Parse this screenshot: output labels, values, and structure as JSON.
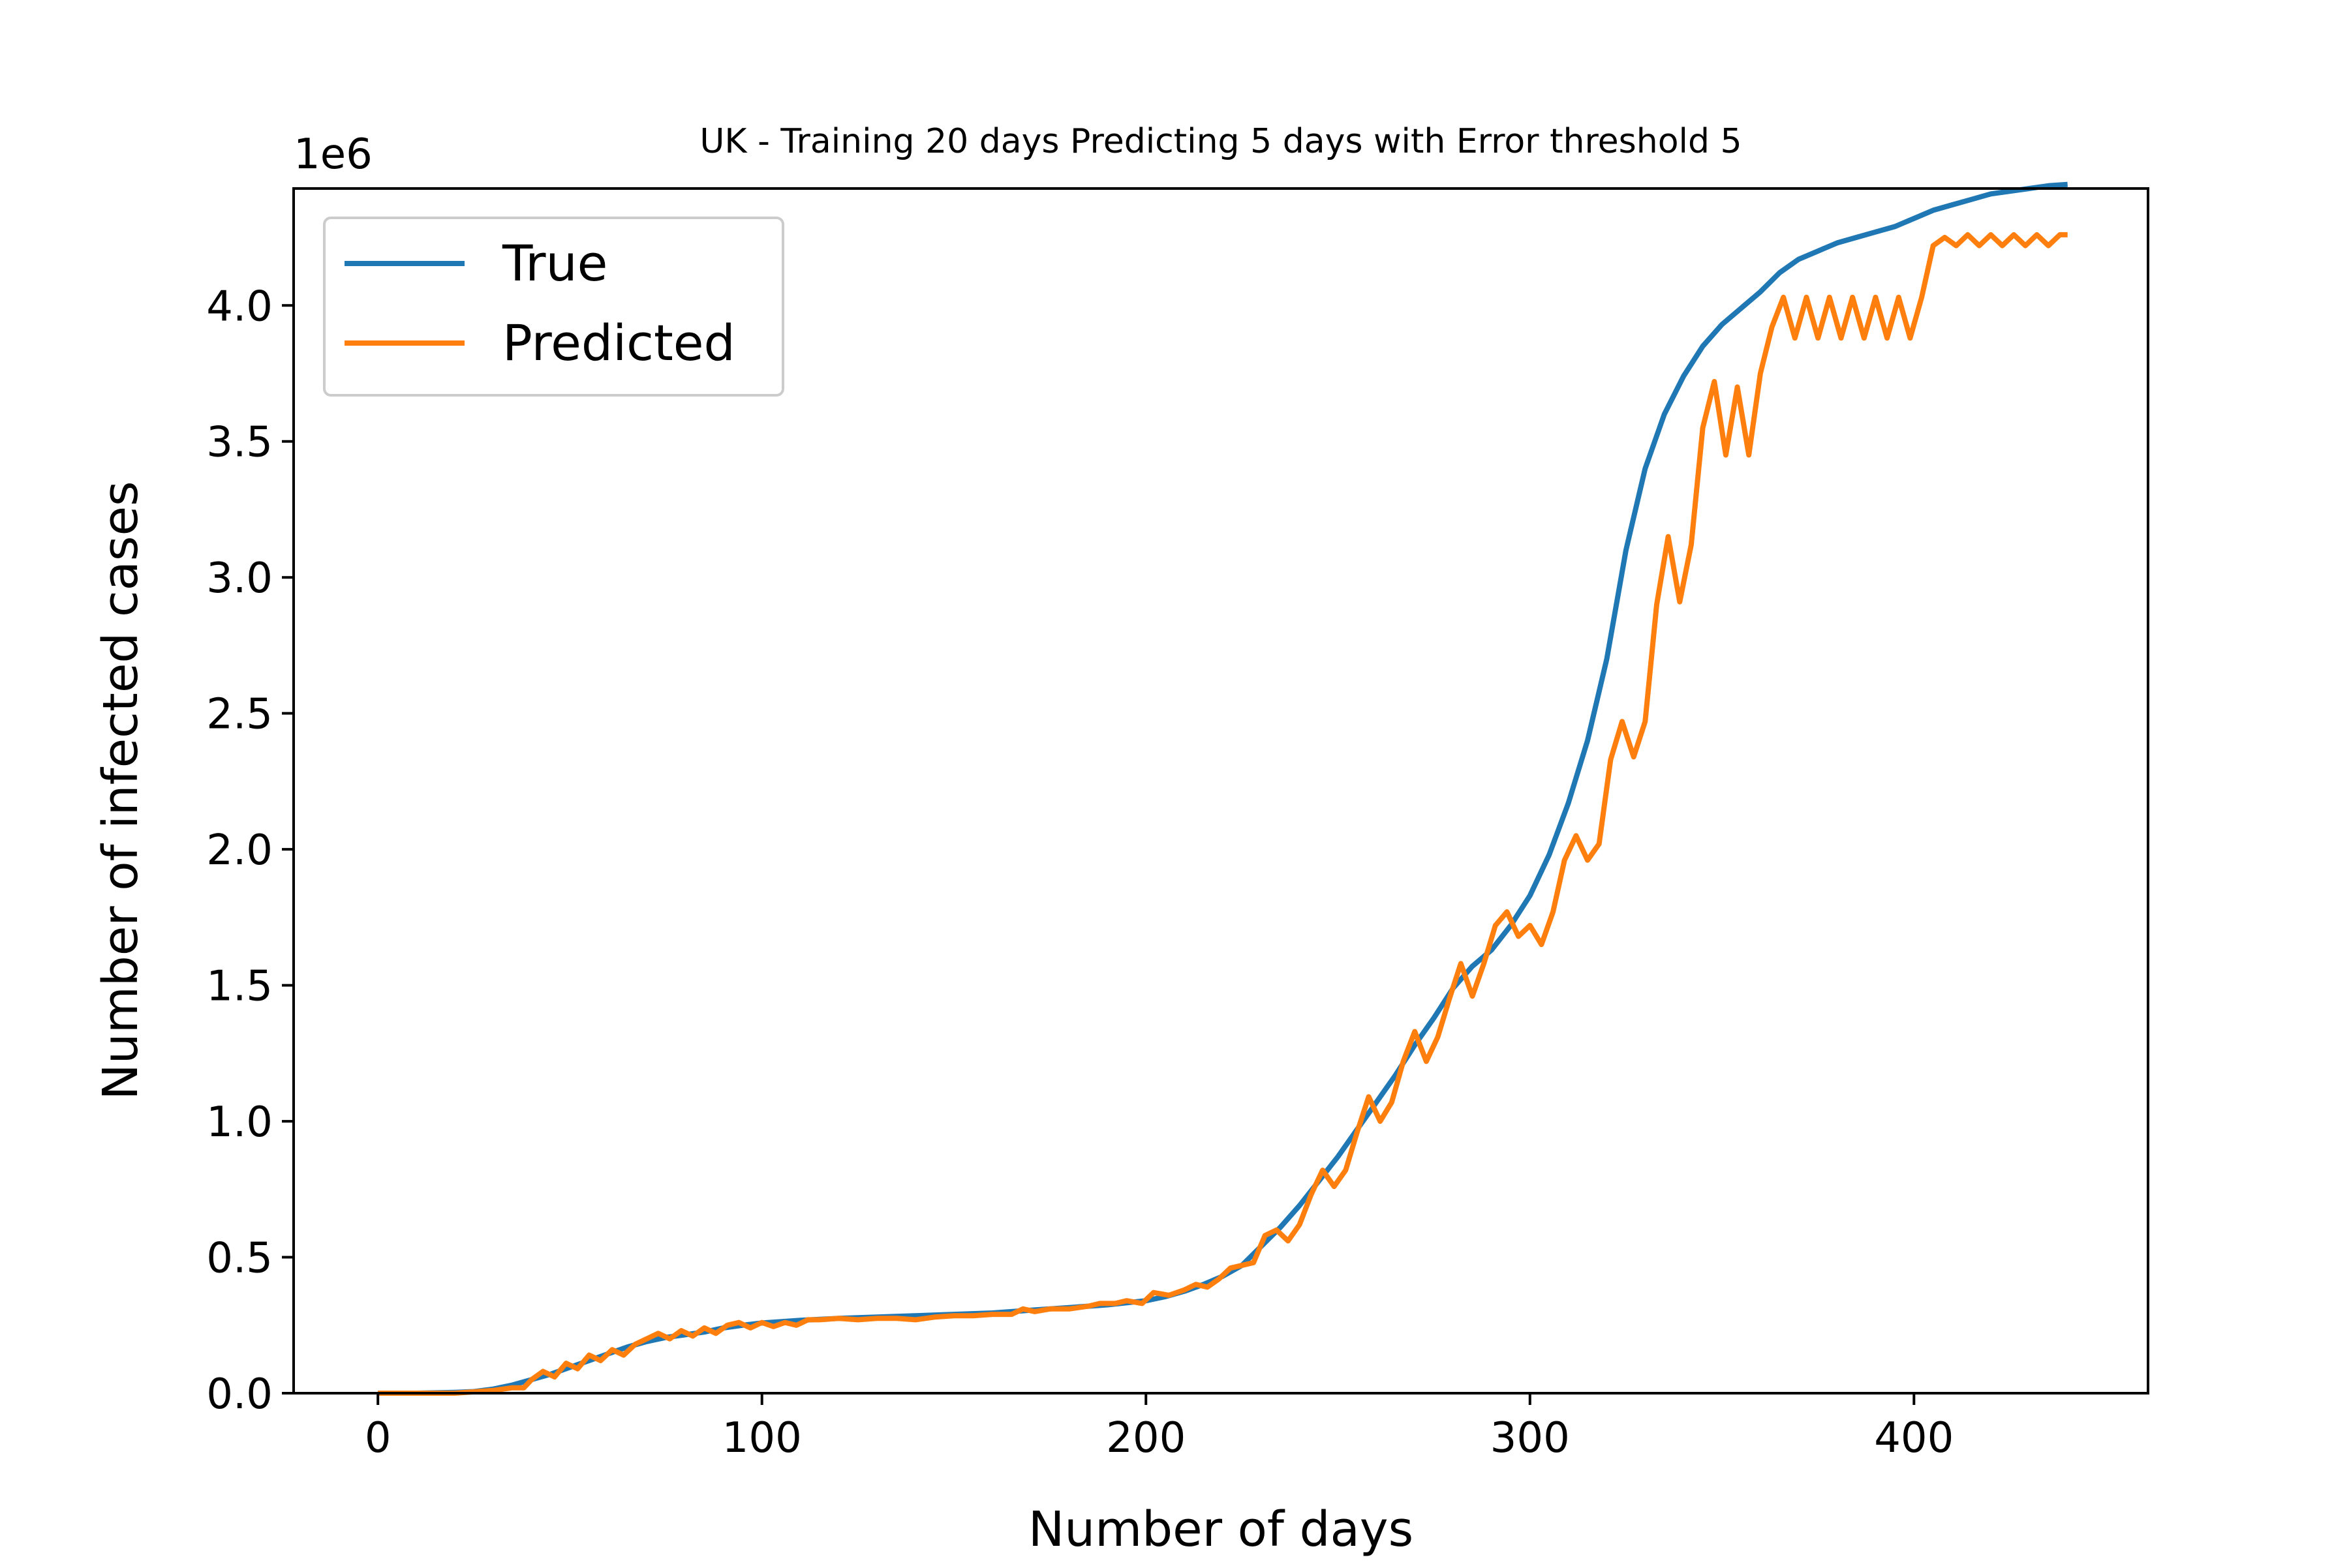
{
  "chart_data": {
    "type": "line",
    "title": "UK - Training 20 days Predicting 5 days with Error threshold 5",
    "xlabel": "Number of days",
    "ylabel": "Number of infected cases",
    "y_scale_label": "1e6",
    "xlim": [
      -21.95,
      460.95
    ],
    "ylim": [
      0,
      4.43
    ],
    "x_ticks": [
      0,
      100,
      200,
      300,
      400
    ],
    "x_tick_labels": [
      "0",
      "100",
      "200",
      "300",
      "400"
    ],
    "y_ticks": [
      0,
      0.5,
      1.0,
      1.5,
      2.0,
      2.5,
      3.0,
      3.5,
      4.0
    ],
    "y_tick_labels": [
      "0.0",
      "0.5",
      "1.0",
      "1.5",
      "2.0",
      "2.5",
      "3.0",
      "3.5",
      "4.0"
    ],
    "grid": false,
    "legend_position": "top-left",
    "series": [
      {
        "name": "True",
        "color": "#1f77b4",
        "points": [
          [
            0,
            0
          ],
          [
            10,
            0.0
          ],
          [
            20,
            0.003
          ],
          [
            25,
            0.006
          ],
          [
            30,
            0.015
          ],
          [
            35,
            0.03
          ],
          [
            40,
            0.05
          ],
          [
            45,
            0.07
          ],
          [
            50,
            0.095
          ],
          [
            55,
            0.12
          ],
          [
            60,
            0.145
          ],
          [
            65,
            0.17
          ],
          [
            70,
            0.19
          ],
          [
            75,
            0.205
          ],
          [
            80,
            0.215
          ],
          [
            85,
            0.225
          ],
          [
            90,
            0.24
          ],
          [
            95,
            0.25
          ],
          [
            100,
            0.258
          ],
          [
            110,
            0.268
          ],
          [
            120,
            0.275
          ],
          [
            130,
            0.28
          ],
          [
            140,
            0.285
          ],
          [
            150,
            0.29
          ],
          [
            160,
            0.295
          ],
          [
            170,
            0.305
          ],
          [
            180,
            0.315
          ],
          [
            190,
            0.325
          ],
          [
            200,
            0.34
          ],
          [
            205,
            0.355
          ],
          [
            210,
            0.375
          ],
          [
            215,
            0.4
          ],
          [
            220,
            0.43
          ],
          [
            225,
            0.47
          ],
          [
            230,
            0.54
          ],
          [
            235,
            0.61
          ],
          [
            240,
            0.69
          ],
          [
            245,
            0.78
          ],
          [
            250,
            0.87
          ],
          [
            255,
            0.97
          ],
          [
            260,
            1.07
          ],
          [
            265,
            1.17
          ],
          [
            270,
            1.28
          ],
          [
            275,
            1.38
          ],
          [
            280,
            1.49
          ],
          [
            285,
            1.57
          ],
          [
            290,
            1.63
          ],
          [
            295,
            1.72
          ],
          [
            300,
            1.83
          ],
          [
            305,
            1.98
          ],
          [
            310,
            2.17
          ],
          [
            315,
            2.4
          ],
          [
            320,
            2.7
          ],
          [
            325,
            3.1
          ],
          [
            330,
            3.4
          ],
          [
            335,
            3.6
          ],
          [
            340,
            3.74
          ],
          [
            345,
            3.85
          ],
          [
            350,
            3.93
          ],
          [
            355,
            3.99
          ],
          [
            360,
            4.05
          ],
          [
            365,
            4.12
          ],
          [
            370,
            4.17
          ],
          [
            375,
            4.2
          ],
          [
            380,
            4.23
          ],
          [
            385,
            4.25
          ],
          [
            390,
            4.27
          ],
          [
            395,
            4.29
          ],
          [
            400,
            4.32
          ],
          [
            405,
            4.35
          ],
          [
            410,
            4.37
          ],
          [
            415,
            4.39
          ],
          [
            420,
            4.41
          ],
          [
            425,
            4.42
          ],
          [
            430,
            4.43
          ],
          [
            435,
            4.44
          ],
          [
            440,
            4.445
          ]
        ]
      },
      {
        "name": "Predicted",
        "color": "#ff7f0e",
        "points": [
          [
            0,
            0
          ],
          [
            10,
            0.0
          ],
          [
            20,
            0.0
          ],
          [
            25,
            0.005
          ],
          [
            30,
            0.01
          ],
          [
            35,
            0.02
          ],
          [
            38,
            0.02
          ],
          [
            40,
            0.05
          ],
          [
            43,
            0.08
          ],
          [
            46,
            0.06
          ],
          [
            49,
            0.11
          ],
          [
            52,
            0.09
          ],
          [
            55,
            0.14
          ],
          [
            58,
            0.12
          ],
          [
            61,
            0.16
          ],
          [
            64,
            0.14
          ],
          [
            67,
            0.18
          ],
          [
            70,
            0.2
          ],
          [
            73,
            0.22
          ],
          [
            76,
            0.2
          ],
          [
            79,
            0.23
          ],
          [
            82,
            0.21
          ],
          [
            85,
            0.24
          ],
          [
            88,
            0.22
          ],
          [
            91,
            0.25
          ],
          [
            94,
            0.26
          ],
          [
            97,
            0.24
          ],
          [
            100,
            0.26
          ],
          [
            103,
            0.245
          ],
          [
            106,
            0.26
          ],
          [
            109,
            0.25
          ],
          [
            112,
            0.27
          ],
          [
            115,
            0.27
          ],
          [
            120,
            0.275
          ],
          [
            125,
            0.27
          ],
          [
            130,
            0.275
          ],
          [
            135,
            0.275
          ],
          [
            140,
            0.27
          ],
          [
            145,
            0.28
          ],
          [
            150,
            0.285
          ],
          [
            155,
            0.285
          ],
          [
            160,
            0.29
          ],
          [
            165,
            0.29
          ],
          [
            168,
            0.31
          ],
          [
            171,
            0.3
          ],
          [
            175,
            0.31
          ],
          [
            180,
            0.31
          ],
          [
            185,
            0.32
          ],
          [
            188,
            0.33
          ],
          [
            192,
            0.33
          ],
          [
            195,
            0.34
          ],
          [
            199,
            0.33
          ],
          [
            202,
            0.37
          ],
          [
            206,
            0.36
          ],
          [
            210,
            0.38
          ],
          [
            213,
            0.4
          ],
          [
            216,
            0.39
          ],
          [
            219,
            0.42
          ],
          [
            222,
            0.46
          ],
          [
            225,
            0.47
          ],
          [
            228,
            0.48
          ],
          [
            231,
            0.58
          ],
          [
            234,
            0.6
          ],
          [
            237,
            0.56
          ],
          [
            240,
            0.62
          ],
          [
            243,
            0.73
          ],
          [
            246,
            0.82
          ],
          [
            249,
            0.76
          ],
          [
            252,
            0.82
          ],
          [
            255,
            0.96
          ],
          [
            258,
            1.09
          ],
          [
            261,
            1.0
          ],
          [
            264,
            1.07
          ],
          [
            267,
            1.22
          ],
          [
            270,
            1.33
          ],
          [
            273,
            1.22
          ],
          [
            276,
            1.31
          ],
          [
            279,
            1.45
          ],
          [
            282,
            1.58
          ],
          [
            285,
            1.46
          ],
          [
            288,
            1.58
          ],
          [
            291,
            1.72
          ],
          [
            294,
            1.77
          ],
          [
            297,
            1.68
          ],
          [
            300,
            1.72
          ],
          [
            303,
            1.65
          ],
          [
            306,
            1.77
          ],
          [
            309,
            1.96
          ],
          [
            312,
            2.05
          ],
          [
            315,
            1.96
          ],
          [
            318,
            2.02
          ],
          [
            321,
            2.33
          ],
          [
            324,
            2.47
          ],
          [
            327,
            2.34
          ],
          [
            330,
            2.47
          ],
          [
            333,
            2.9
          ],
          [
            336,
            3.15
          ],
          [
            339,
            2.91
          ],
          [
            342,
            3.12
          ],
          [
            345,
            3.55
          ],
          [
            348,
            3.72
          ],
          [
            351,
            3.45
          ],
          [
            354,
            3.7
          ],
          [
            357,
            3.45
          ],
          [
            360,
            3.75
          ],
          [
            363,
            3.92
          ],
          [
            366,
            4.03
          ],
          [
            369,
            3.88
          ],
          [
            372,
            4.03
          ],
          [
            375,
            3.88
          ],
          [
            378,
            4.03
          ],
          [
            381,
            3.88
          ],
          [
            384,
            4.03
          ],
          [
            387,
            3.88
          ],
          [
            390,
            4.03
          ],
          [
            393,
            3.88
          ],
          [
            396,
            4.03
          ],
          [
            399,
            3.88
          ],
          [
            402,
            4.03
          ],
          [
            405,
            4.22
          ],
          [
            408,
            4.25
          ],
          [
            411,
            4.22
          ],
          [
            414,
            4.26
          ],
          [
            417,
            4.22
          ],
          [
            420,
            4.26
          ],
          [
            423,
            4.22
          ],
          [
            426,
            4.26
          ],
          [
            429,
            4.22
          ],
          [
            432,
            4.26
          ],
          [
            435,
            4.22
          ],
          [
            438,
            4.26
          ],
          [
            440,
            4.26
          ]
        ]
      }
    ]
  }
}
